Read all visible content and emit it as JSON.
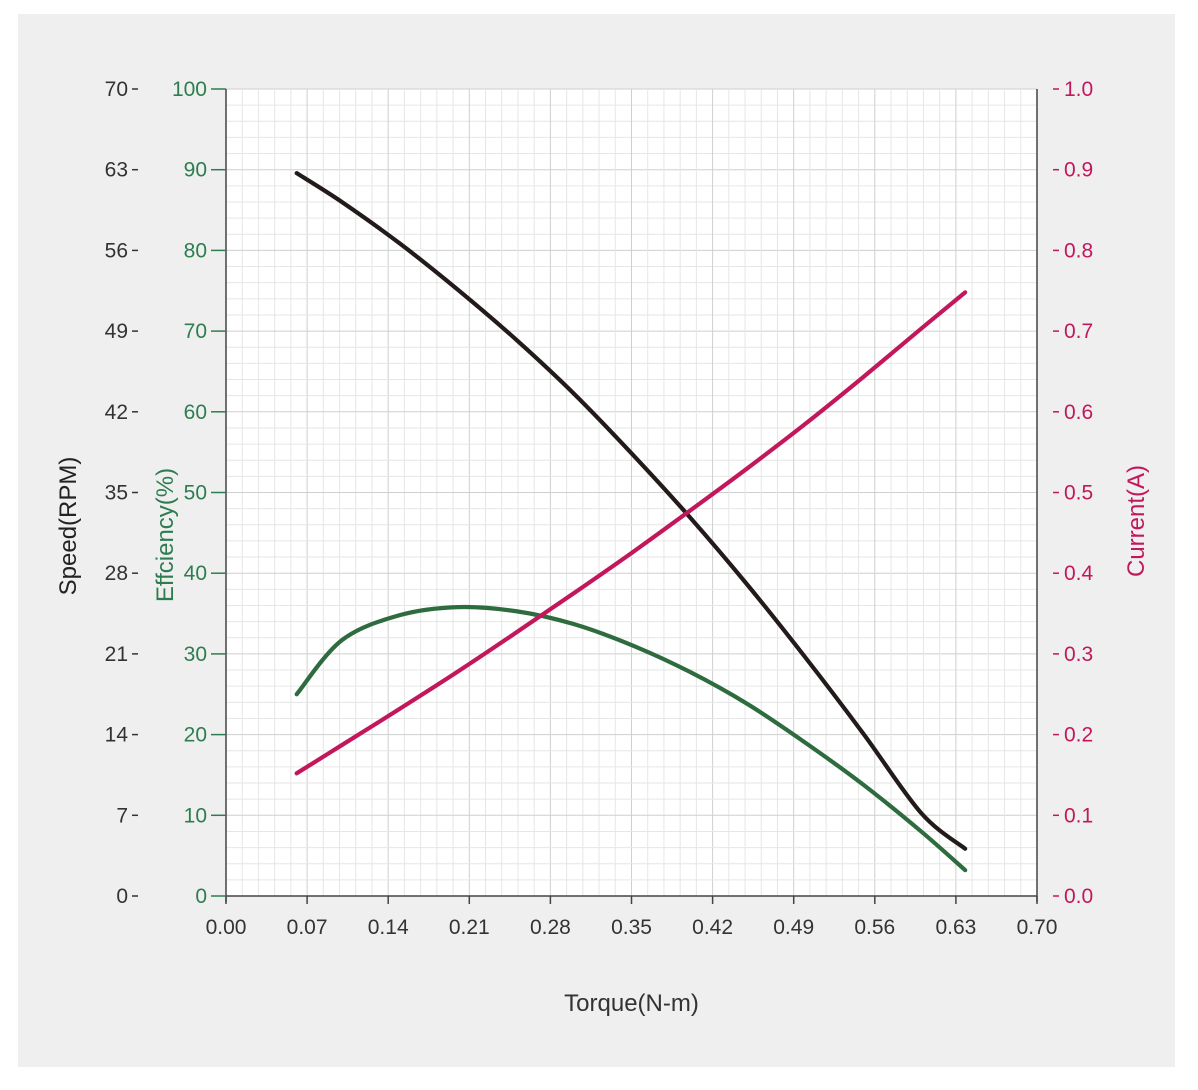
{
  "chart_data": {
    "type": "line",
    "xlabel": "Torque(N-m)",
    "x_ticks": [
      "0.00",
      "0.07",
      "0.14",
      "0.21",
      "0.28",
      "0.35",
      "0.42",
      "0.49",
      "0.56",
      "0.63",
      "0.70"
    ],
    "xlim": [
      0,
      0.7
    ],
    "y_axes": {
      "speed": {
        "label": "Speed(RPM)",
        "ticks": [
          "0",
          "7",
          "14",
          "21",
          "28",
          "35",
          "42",
          "49",
          "56",
          "63",
          "70"
        ],
        "ylim": [
          0,
          70
        ],
        "color": "#333333"
      },
      "efficiency": {
        "label": "Effciency(%)",
        "ticks": [
          "0",
          "10",
          "20",
          "30",
          "40",
          "50",
          "60",
          "70",
          "80",
          "90",
          "100"
        ],
        "ylim": [
          0,
          100
        ],
        "color": "#2e7d4f"
      },
      "current": {
        "label": "Current(A)",
        "ticks": [
          "0.0",
          "0.1",
          "0.2",
          "0.3",
          "0.4",
          "0.5",
          "0.6",
          "0.7",
          "0.8",
          "0.9",
          "1.0"
        ],
        "ylim": [
          0,
          1.0
        ],
        "color": "#c2185b"
      }
    },
    "grid": true,
    "series": [
      {
        "axis": "speed",
        "color": "#231a1a",
        "x": [
          0.061,
          0.1,
          0.15,
          0.2,
          0.25,
          0.3,
          0.35,
          0.4,
          0.45,
          0.5,
          0.55,
          0.6,
          0.638
        ],
        "y": [
          62.7,
          60.2,
          56.6,
          52.6,
          48.3,
          43.6,
          38.4,
          32.9,
          27.0,
          20.7,
          14.1,
          7.2,
          4.1
        ]
      },
      {
        "axis": "efficiency",
        "color": "#2e6b3e",
        "x": [
          0.061,
          0.1,
          0.15,
          0.2,
          0.25,
          0.3,
          0.35,
          0.4,
          0.45,
          0.5,
          0.55,
          0.6,
          0.638
        ],
        "y": [
          25.0,
          31.7,
          34.8,
          35.8,
          35.3,
          33.7,
          31.1,
          27.8,
          23.8,
          19.0,
          13.8,
          8.0,
          3.2
        ]
      },
      {
        "axis": "current",
        "color": "#c2185b",
        "x": [
          0.061,
          0.1,
          0.15,
          0.2,
          0.25,
          0.3,
          0.35,
          0.4,
          0.45,
          0.5,
          0.55,
          0.6,
          0.638
        ],
        "y": [
          0.152,
          0.187,
          0.232,
          0.278,
          0.326,
          0.375,
          0.425,
          0.477,
          0.53,
          0.585,
          0.643,
          0.703,
          0.748
        ]
      }
    ]
  }
}
